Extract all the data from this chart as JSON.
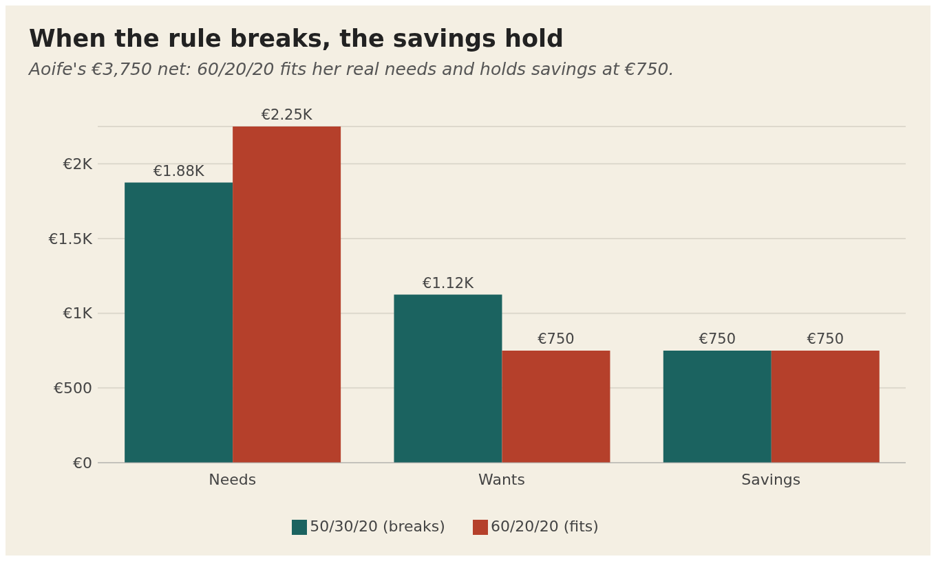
{
  "chart_data": {
    "type": "bar",
    "title": "When the rule breaks, the savings hold",
    "subtitle": "Aoife's €3,750 net: 60/20/20 fits her real needs and holds savings at €750.",
    "categories": [
      "Needs",
      "Wants",
      "Savings"
    ],
    "series": [
      {
        "name": "50/30/20 (breaks)",
        "color": "#1b6360",
        "values": [
          1875,
          1125,
          750
        ],
        "value_labels": [
          "€1.88K",
          "€1.12K",
          "€750"
        ]
      },
      {
        "name": "60/20/20 (fits)",
        "color": "#b5402b",
        "values": [
          2250,
          750,
          750
        ],
        "value_labels": [
          "€2.25K",
          "€750",
          "€750"
        ]
      }
    ],
    "ylim": [
      0,
      2250
    ],
    "yticks": [
      {
        "value": 0,
        "label": "€0"
      },
      {
        "value": 500,
        "label": "€500"
      },
      {
        "value": 1000,
        "label": "€1K"
      },
      {
        "value": 1500,
        "label": "€1.5K"
      },
      {
        "value": 2000,
        "label": "€2K"
      }
    ],
    "grid": "y",
    "legend": "bottom"
  }
}
